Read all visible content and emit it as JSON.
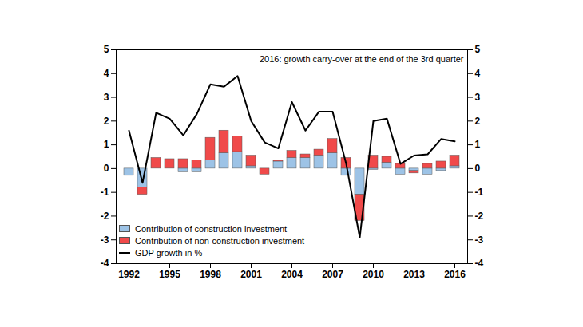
{
  "chart_data": {
    "type": "bar",
    "stacked": true,
    "annotation": "2016: growth carry-over at the end of the 3rd quarter",
    "categories": [
      1992,
      1993,
      1994,
      1995,
      1996,
      1997,
      1998,
      1999,
      2000,
      2001,
      2002,
      2003,
      2004,
      2005,
      2006,
      2007,
      2008,
      2009,
      2010,
      2011,
      2012,
      2013,
      2014,
      2015,
      2016
    ],
    "series": [
      {
        "name": "Contribution of construction investment",
        "type": "bar",
        "color": "#9dc3e6",
        "values": [
          -0.3,
          -0.8,
          0,
          0,
          -0.15,
          -0.15,
          0.35,
          0.65,
          0.7,
          0.1,
          0,
          0.3,
          0.45,
          0.45,
          0.55,
          0.65,
          -0.3,
          -1.1,
          -0.05,
          0.25,
          -0.25,
          -0.1,
          -0.25,
          -0.1,
          0.1
        ]
      },
      {
        "name": "Contribution of non-construction investment",
        "type": "bar",
        "color": "#f04a4a",
        "values": [
          0,
          -0.3,
          0.45,
          0.4,
          0.4,
          0.35,
          0.95,
          0.95,
          0.65,
          0.45,
          -0.25,
          0.05,
          0.3,
          0.15,
          0.25,
          0.6,
          0.45,
          -1.1,
          0.55,
          0.25,
          0.2,
          -0.1,
          0.2,
          0.3,
          0.45
        ]
      },
      {
        "name": "GDP growth in %",
        "type": "line",
        "color": "#000000",
        "values": [
          1.6,
          -0.6,
          2.35,
          2.1,
          1.4,
          2.3,
          3.55,
          3.45,
          3.9,
          2.0,
          1.1,
          0.85,
          2.8,
          1.6,
          2.4,
          2.4,
          0.2,
          -2.9,
          2.0,
          2.1,
          0.2,
          0.55,
          0.6,
          1.25,
          1.15
        ]
      }
    ],
    "xticks": [
      1992,
      1995,
      1998,
      2001,
      2004,
      2007,
      2010,
      2013,
      2016
    ],
    "ylim": [
      -4,
      5
    ],
    "yticks": [
      -4,
      -3,
      -2,
      -1,
      0,
      1,
      2,
      3,
      4,
      5
    ],
    "legend": "lower left",
    "grid": false
  }
}
